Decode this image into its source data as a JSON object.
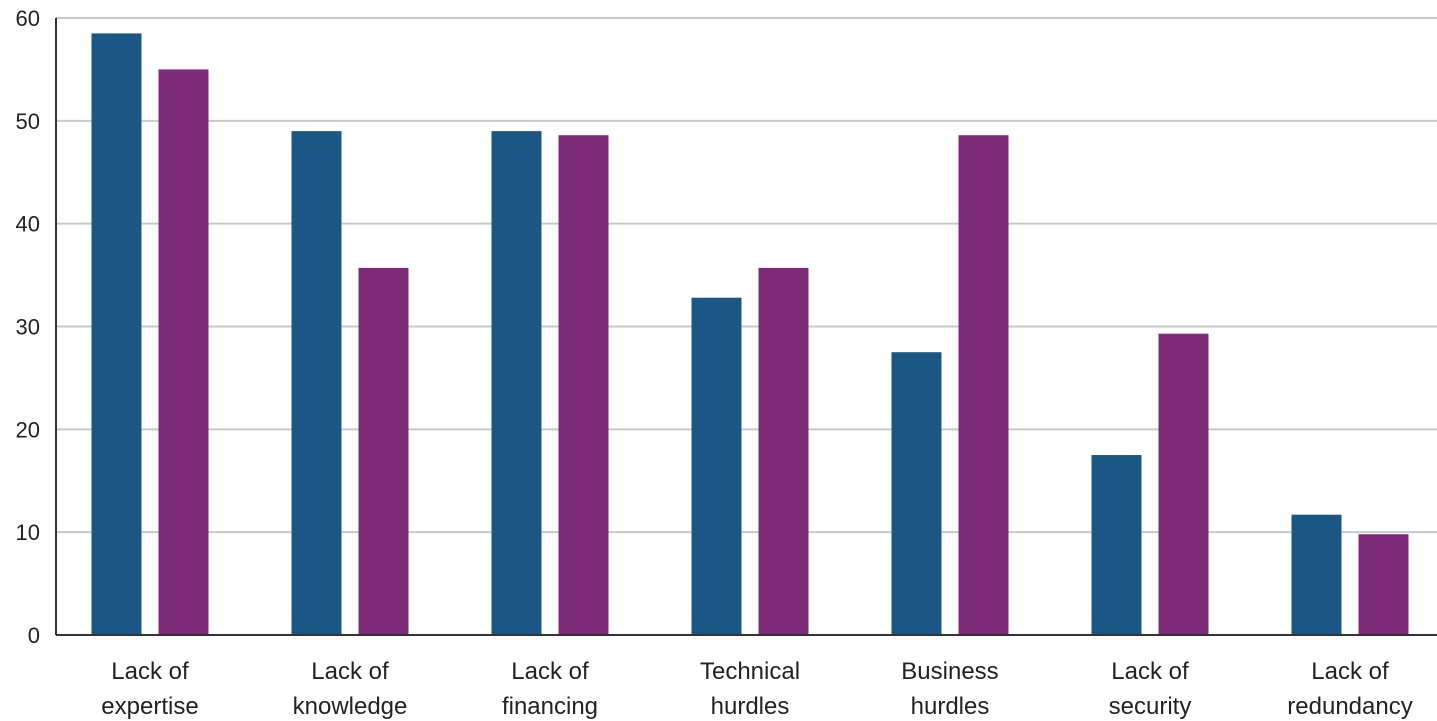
{
  "chart_data": {
    "type": "bar",
    "categories": [
      [
        "Lack of",
        "expertise"
      ],
      [
        "Lack of",
        "knowledge"
      ],
      [
        "Lack of",
        "financing"
      ],
      [
        "Technical",
        "hurdles"
      ],
      [
        "Business",
        "hurdles"
      ],
      [
        "Lack of",
        "security"
      ],
      [
        "Lack of",
        "redundancy"
      ]
    ],
    "series": [
      {
        "color": "#1a5785",
        "values": [
          58.5,
          49,
          49,
          32.8,
          27.5,
          17.5,
          11.7
        ]
      },
      {
        "color": "#7d2a78",
        "values": [
          55,
          35.7,
          48.6,
          35.7,
          48.6,
          29.3,
          9.8
        ]
      }
    ],
    "ylim": [
      0,
      60
    ],
    "yticks": [
      "0",
      "10",
      "20",
      "30",
      "40",
      "50",
      "60"
    ],
    "grid": true,
    "legend": "none"
  }
}
